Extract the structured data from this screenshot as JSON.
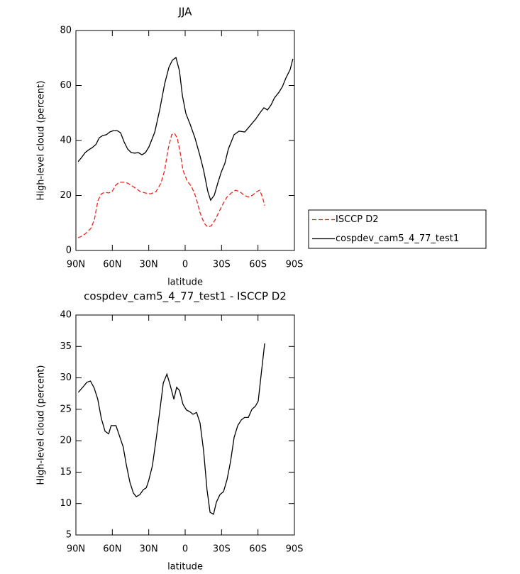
{
  "chart_data": [
    {
      "type": "line",
      "title": "JJA",
      "xlabel": "latitude",
      "ylabel": "High-level cloud (percent)",
      "xlim": [
        90,
        -90
      ],
      "xticks": [
        {
          "value": 90,
          "label": "90N"
        },
        {
          "value": 60,
          "label": "60N"
        },
        {
          "value": 30,
          "label": "30N"
        },
        0,
        {
          "value": -30,
          "label": "30S"
        },
        {
          "value": -60,
          "label": "60S"
        },
        {
          "value": -90,
          "label": "90S"
        }
      ],
      "ylim": [
        0,
        80
      ],
      "yticks": [
        0,
        20,
        40,
        60,
        80
      ],
      "legend": "right",
      "series": [
        {
          "name": "ISCCP D2",
          "color": "#e8251f",
          "dash": true,
          "x": [
            88.2,
            84.2,
            80.6,
            77.7,
            74.8,
            71.9,
            69.0,
            66.1,
            63.1,
            60.2,
            57.3,
            54.4,
            50.3,
            47.4,
            43.9,
            40.4,
            36.9,
            32.7,
            28.6,
            24.0,
            19.9,
            16.9,
            14.0,
            11.1,
            8.8,
            6.4,
            4.1,
            1.8,
            -1.7,
            -5.3,
            -8.8,
            -12.3,
            -15.8,
            -18.7,
            -21.6,
            -24.6,
            -27.5,
            -31.0,
            -34.5,
            -38.0,
            -41.5,
            -45.0,
            -48.5,
            -52.0,
            -55.5,
            -59.0,
            -61.4,
            -63.7,
            -65.5
          ],
          "values": [
            4.6,
            5.4,
            6.7,
            8.0,
            11.1,
            18.1,
            20.6,
            21.2,
            20.9,
            21.4,
            23.7,
            24.8,
            24.8,
            24.5,
            23.5,
            22.5,
            21.4,
            20.9,
            20.6,
            21.4,
            24.5,
            29.2,
            36.9,
            42.1,
            42.6,
            40.8,
            35.6,
            29.2,
            25.3,
            23.2,
            19.4,
            13.7,
            9.8,
            8.5,
            9.0,
            11.1,
            13.7,
            16.8,
            19.4,
            20.9,
            21.9,
            21.4,
            20.1,
            19.4,
            20.1,
            21.4,
            21.9,
            19.4,
            16.3
          ]
        },
        {
          "name": "cospdev_cam5_4_77_test1",
          "color": "#000000",
          "dash": false,
          "x": [
            88.2,
            85.3,
            82.4,
            79.5,
            76.6,
            73.6,
            70.7,
            67.8,
            64.9,
            62.0,
            59.0,
            56.1,
            53.2,
            50.3,
            47.4,
            44.4,
            41.5,
            38.6,
            35.6,
            32.7,
            29.8,
            25.1,
            21.0,
            16.9,
            13.4,
            10.5,
            7.6,
            4.7,
            2.3,
            -0.6,
            -4.1,
            -8.2,
            -12.3,
            -15.2,
            -18.7,
            -21.0,
            -24.0,
            -26.9,
            -29.8,
            -32.7,
            -35.6,
            -40.3,
            -44.4,
            -49.1,
            -53.2,
            -57.9,
            -62.0,
            -64.9,
            -67.8,
            -70.7,
            -73.6,
            -77.2,
            -80.1,
            -83.0,
            -86.5,
            -88.8
          ],
          "values": [
            32.3,
            33.8,
            35.6,
            36.6,
            37.4,
            38.5,
            41.0,
            41.8,
            42.1,
            43.1,
            43.6,
            43.6,
            42.8,
            39.5,
            36.9,
            35.6,
            35.4,
            35.6,
            34.8,
            35.6,
            37.7,
            43.0,
            51.1,
            60.6,
            66.6,
            69.2,
            70.2,
            65.3,
            56.3,
            49.8,
            45.9,
            40.8,
            34.3,
            29.2,
            21.4,
            18.3,
            20.1,
            24.5,
            28.6,
            31.7,
            36.9,
            42.1,
            43.4,
            43.1,
            45.2,
            47.7,
            50.3,
            51.9,
            51.1,
            52.9,
            55.5,
            57.5,
            59.6,
            62.7,
            65.8,
            69.7
          ]
        }
      ]
    },
    {
      "type": "line",
      "title": "cospdev_cam5_4_77_test1 - ISCCP D2",
      "xlabel": "latitude",
      "ylabel": "High-level cloud (percent)",
      "xlim": [
        90,
        -90
      ],
      "xticks": [
        {
          "value": 90,
          "label": "90N"
        },
        {
          "value": 60,
          "label": "60N"
        },
        {
          "value": 30,
          "label": "30N"
        },
        0,
        {
          "value": -30,
          "label": "30S"
        },
        {
          "value": -60,
          "label": "60S"
        },
        {
          "value": -90,
          "label": "90S"
        }
      ],
      "ylim": [
        5,
        40
      ],
      "yticks": [
        5,
        10,
        15,
        20,
        25,
        30,
        35,
        40
      ],
      "series": [
        {
          "color": "#000000",
          "dash": false,
          "x": [
            88,
            84,
            81,
            78,
            75,
            72,
            69,
            66,
            63,
            61,
            57,
            54,
            51,
            48.5,
            45.5,
            42.7,
            40.3,
            37.4,
            34.5,
            32,
            30,
            27,
            24,
            21,
            18,
            15,
            12.3,
            9.3,
            7,
            4.7,
            1.8,
            -1,
            -4,
            -6.4,
            -9.4,
            -12.3,
            -15.2,
            -18,
            -20.5,
            -23.4,
            -25.7,
            -28.6,
            -31.6,
            -34.5,
            -37.4,
            -40.3,
            -43.3,
            -46.2,
            -49,
            -52,
            -55,
            -57.9,
            -60.2,
            -62.5,
            -65.5
          ],
          "values": [
            27.7,
            28.6,
            29.3,
            29.5,
            28.4,
            26.6,
            23.5,
            21.5,
            21.1,
            22.4,
            22.4,
            20.7,
            19,
            16.2,
            13.4,
            11.7,
            11.1,
            11.4,
            12.2,
            12.5,
            13.7,
            16,
            20.1,
            24.6,
            29.2,
            30.6,
            28.8,
            26.6,
            28.5,
            28,
            25.8,
            24.9,
            24.6,
            24.2,
            24.5,
            22.8,
            18.4,
            12.2,
            8.6,
            8.3,
            10.2,
            11.4,
            11.9,
            13.8,
            16.7,
            20.5,
            22.4,
            23.3,
            23.7,
            23.7,
            25,
            25.5,
            26.3,
            30.3,
            35.5
          ]
        }
      ]
    }
  ]
}
